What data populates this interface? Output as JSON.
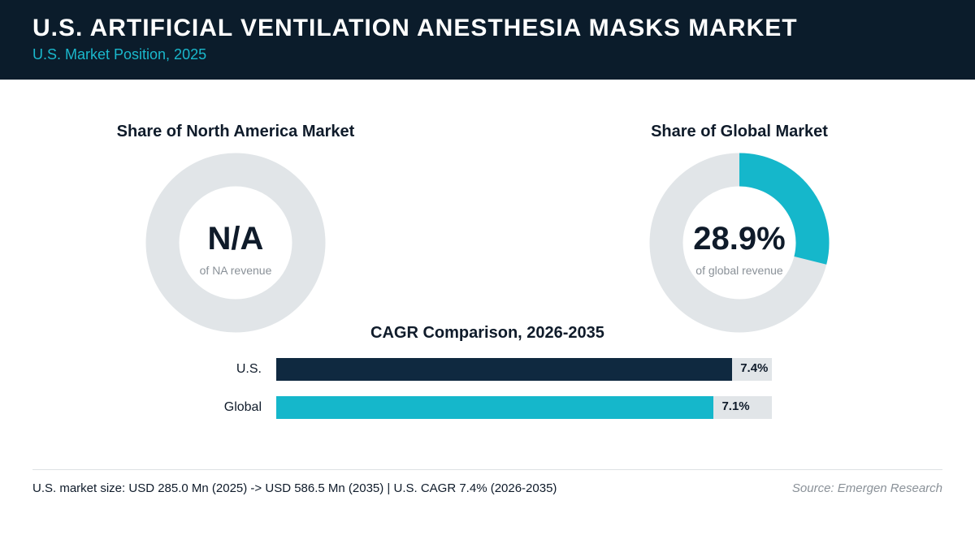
{
  "header": {
    "title": "U.S. ARTIFICIAL VENTILATION ANESTHESIA MASKS MARKET",
    "subtitle": "U.S. Market Position, 2025"
  },
  "colors": {
    "header_bg": "#0b1c2b",
    "accent_cyan": "#15b7cb",
    "navy": "#0f2940",
    "track": "#e1e5e8"
  },
  "chart_data": [
    {
      "type": "pie",
      "title": "Share of North America Market",
      "center_value": "N/A",
      "center_caption": "of NA revenue",
      "share_percent": null
    },
    {
      "type": "pie",
      "title": "Share of Global Market",
      "center_value": "28.9%",
      "center_caption": "of global revenue",
      "share_percent": 28.9
    },
    {
      "type": "bar",
      "orientation": "horizontal",
      "title": "CAGR Comparison, 2026-2035",
      "categories": [
        "U.S.",
        "Global"
      ],
      "values": [
        7.4,
        7.1
      ],
      "value_labels": [
        "7.4%",
        "7.1%"
      ],
      "bar_colors": [
        "#0f2940",
        "#15b7cb"
      ]
    }
  ],
  "footer": {
    "summary": "U.S. market size: USD 285.0 Mn (2025) -> USD 586.5 Mn (2035)  |  U.S. CAGR 7.4% (2026-2035)",
    "source": "Source: Emergen Research"
  }
}
